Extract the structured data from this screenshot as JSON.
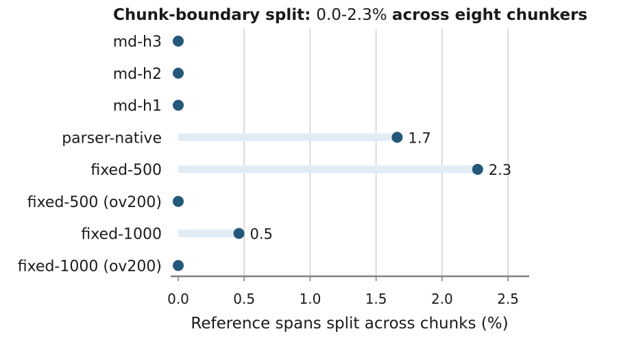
{
  "chart_data": {
    "type": "lollipop",
    "title_parts": [
      {
        "text": "Chunk-boundary split: ",
        "bold": true
      },
      {
        "text": "0.0-2.3% ",
        "bold": false
      },
      {
        "text": "across eight chunkers",
        "bold": true
      }
    ],
    "xlabel": "Reference spans split across chunks (%)",
    "ylabel": "",
    "xlim": [
      -0.06,
      2.65
    ],
    "xticks": [
      0.0,
      0.5,
      1.0,
      1.5,
      2.0,
      2.5
    ],
    "xtick_labels": [
      "0.0",
      "0.5",
      "1.0",
      "1.5",
      "2.0",
      "2.5"
    ],
    "grid": "vertical",
    "categories": [
      "md-h3",
      "md-h2",
      "md-h1",
      "parser-native",
      "fixed-500",
      "fixed-500 (ov200)",
      "fixed-1000",
      "fixed-1000 (ov200)"
    ],
    "values": [
      0.0,
      0.0,
      0.0,
      1.66,
      2.27,
      0.0,
      0.46,
      0.0
    ],
    "data_labels": [
      "",
      "",
      "",
      "1.7",
      "2.3",
      "",
      "0.5",
      ""
    ],
    "colors": {
      "point": "#23587a",
      "stem": "#e3ecf4",
      "grid": "#d3d3d3",
      "axis": "#808080"
    }
  }
}
